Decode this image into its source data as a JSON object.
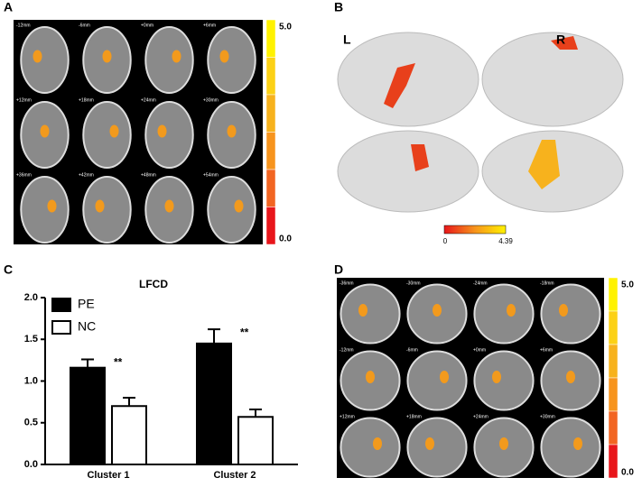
{
  "panels": {
    "A": {
      "label": "A",
      "slices": [
        "-12mm",
        "-6mm",
        "+0mm",
        "+6mm",
        "+12mm",
        "+18mm",
        "+24mm",
        "+30mm",
        "+36mm",
        "+42mm",
        "+48mm",
        "+54mm"
      ],
      "colorbar": [
        "5.0",
        "0.0"
      ]
    },
    "B": {
      "label": "B",
      "left": "L",
      "right": "R",
      "colorbar": [
        "0",
        "4.39"
      ]
    },
    "C": {
      "label": "C"
    },
    "D": {
      "label": "D",
      "slices": [
        "-36mm",
        "-30mm",
        "-24mm",
        "-18mm",
        "-12mm",
        "-6mm",
        "+0mm",
        "+6mm",
        "+12mm",
        "+18mm",
        "+24mm",
        "+30mm"
      ],
      "colorbar": [
        "5.0",
        "0.0"
      ]
    }
  },
  "chart_data": {
    "type": "bar",
    "title": "LFCD",
    "categories": [
      "Cluster 1",
      "Cluster 2"
    ],
    "series": [
      {
        "name": "PE",
        "color": "#000000",
        "values": [
          1.16,
          1.45
        ],
        "errors": [
          0.1,
          0.17
        ]
      },
      {
        "name": "NC",
        "color": "#ffffff",
        "values": [
          0.7,
          0.57
        ],
        "errors": [
          0.1,
          0.09
        ]
      }
    ],
    "annotations": [
      "**",
      "**"
    ],
    "ylim": [
      0,
      2
    ],
    "yticks": [
      {
        "value": 0,
        "label": "0.0"
      },
      {
        "value": 0.5,
        "label": "0.5"
      },
      {
        "value": 1,
        "label": "1.0"
      },
      {
        "value": 1.5,
        "label": "1.5"
      },
      {
        "value": 2,
        "label": "2.0"
      }
    ]
  }
}
